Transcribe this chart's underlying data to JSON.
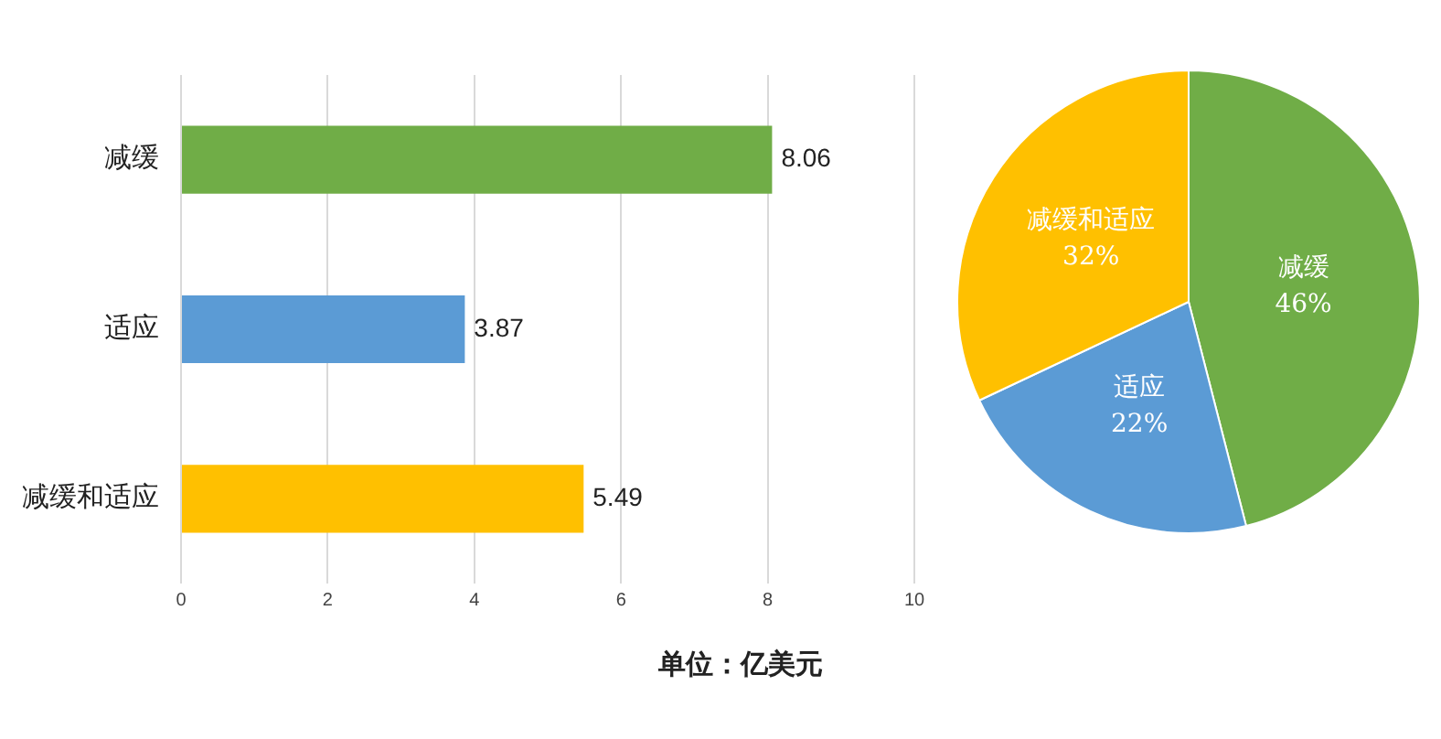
{
  "chart_data": [
    {
      "type": "bar",
      "orientation": "horizontal",
      "categories": [
        "减缓",
        "适应",
        "减缓和适应"
      ],
      "values": [
        8.06,
        3.87,
        5.49
      ],
      "colors": [
        "#70ad47",
        "#5b9bd5",
        "#ffc000"
      ],
      "xlim": [
        0,
        10
      ],
      "xticks": [
        0,
        2,
        4,
        6,
        8,
        10
      ],
      "grid": "x",
      "data_labels": true,
      "legend": false,
      "annotations": [
        "单位：亿美元"
      ]
    },
    {
      "type": "pie",
      "categories": [
        "减缓",
        "适应",
        "减缓和适应"
      ],
      "values": [
        46,
        22,
        32
      ],
      "colors": [
        "#70ad47",
        "#5b9bd5",
        "#ffc000"
      ],
      "value_labels": [
        "46%",
        "22%",
        "32%"
      ],
      "legend": false
    }
  ]
}
